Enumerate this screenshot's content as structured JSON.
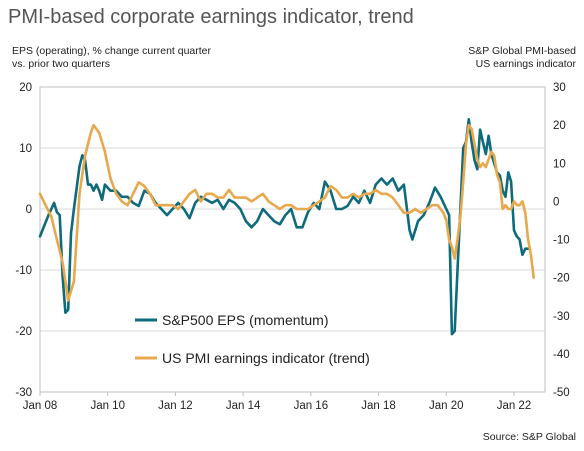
{
  "title": "PMI-based corporate earnings indicator, trend",
  "source": "Source: S&P Global",
  "chart_data": {
    "type": "line",
    "left_axis_label": [
      "EPS (operating), % change current quarter",
      "vs. prior two quarters"
    ],
    "right_axis_label": [
      "S&P Global PMI-based",
      "US earnings indicator"
    ],
    "x_tick_labels": [
      "Jan 08",
      "Jan 10",
      "Jan 12",
      "Jan 14",
      "Jan 16",
      "Jan 18",
      "Jan 20",
      "Jan 22"
    ],
    "x_range": [
      "2008-01",
      "2022-12"
    ],
    "left_ylim": [
      -30,
      20
    ],
    "left_ticks": [
      20,
      10,
      0,
      -10,
      -20,
      -30
    ],
    "right_ylim": [
      -50,
      30
    ],
    "right_ticks": [
      30,
      20,
      10,
      0,
      -10,
      -20,
      -30,
      -40,
      -50
    ],
    "grid": true,
    "legend_placement": "bottom-center",
    "series": [
      {
        "name": "S&P500 EPS (momentum)",
        "axis": "left",
        "color": "#0e6b7c",
        "points": [
          [
            "2008-01",
            -4.5
          ],
          [
            "2008-04",
            -1
          ],
          [
            "2008-06",
            1
          ],
          [
            "2008-07",
            -0.5
          ],
          [
            "2008-08",
            -1
          ],
          [
            "2008-09",
            -11
          ],
          [
            "2008-10",
            -17
          ],
          [
            "2008-11",
            -16.5
          ],
          [
            "2008-12",
            -4
          ],
          [
            "2009-01",
            0
          ],
          [
            "2009-03",
            7
          ],
          [
            "2009-04",
            8.8
          ],
          [
            "2009-05",
            8
          ],
          [
            "2009-06",
            4
          ],
          [
            "2009-07",
            4
          ],
          [
            "2009-08",
            3
          ],
          [
            "2009-09",
            4
          ],
          [
            "2009-10",
            3
          ],
          [
            "2009-11",
            1.5
          ],
          [
            "2009-12",
            4
          ],
          [
            "2010-02",
            3
          ],
          [
            "2010-04",
            3
          ],
          [
            "2010-06",
            2
          ],
          [
            "2010-08",
            2
          ],
          [
            "2010-10",
            1
          ],
          [
            "2010-12",
            0.5
          ],
          [
            "2011-02",
            3
          ],
          [
            "2011-04",
            2.5
          ],
          [
            "2011-06",
            1
          ],
          [
            "2011-08",
            0
          ],
          [
            "2011-10",
            -1
          ],
          [
            "2011-12",
            0
          ],
          [
            "2012-02",
            1
          ],
          [
            "2012-04",
            0
          ],
          [
            "2012-06",
            -1.5
          ],
          [
            "2012-08",
            1
          ],
          [
            "2012-10",
            2
          ],
          [
            "2012-12",
            1.5
          ],
          [
            "2013-02",
            1
          ],
          [
            "2013-04",
            1.5
          ],
          [
            "2013-06",
            0
          ],
          [
            "2013-08",
            1.5
          ],
          [
            "2013-10",
            1
          ],
          [
            "2013-12",
            0
          ],
          [
            "2014-02",
            -2
          ],
          [
            "2014-04",
            -3
          ],
          [
            "2014-06",
            -2
          ],
          [
            "2014-08",
            0
          ],
          [
            "2014-10",
            -1
          ],
          [
            "2014-12",
            -2
          ],
          [
            "2015-02",
            -2.5
          ],
          [
            "2015-04",
            -1
          ],
          [
            "2015-06",
            0
          ],
          [
            "2015-08",
            -3
          ],
          [
            "2015-10",
            -3
          ],
          [
            "2015-12",
            -0.5
          ],
          [
            "2016-02",
            1
          ],
          [
            "2016-04",
            0
          ],
          [
            "2016-06",
            4.5
          ],
          [
            "2016-08",
            3
          ],
          [
            "2016-10",
            0
          ],
          [
            "2016-12",
            0
          ],
          [
            "2017-02",
            0.5
          ],
          [
            "2017-04",
            2
          ],
          [
            "2017-06",
            1
          ],
          [
            "2017-08",
            3
          ],
          [
            "2017-10",
            1
          ],
          [
            "2017-12",
            4
          ],
          [
            "2018-02",
            5
          ],
          [
            "2018-04",
            4
          ],
          [
            "2018-06",
            5
          ],
          [
            "2018-08",
            3
          ],
          [
            "2018-10",
            4
          ],
          [
            "2018-12",
            -3.5
          ],
          [
            "2019-01",
            -5
          ],
          [
            "2019-03",
            -2
          ],
          [
            "2019-05",
            -1
          ],
          [
            "2019-07",
            1
          ],
          [
            "2019-09",
            3.5
          ],
          [
            "2019-11",
            2
          ],
          [
            "2020-01",
            0
          ],
          [
            "2020-02",
            -1
          ],
          [
            "2020-03",
            -20.5
          ],
          [
            "2020-04",
            -20
          ],
          [
            "2020-05",
            -10
          ],
          [
            "2020-06",
            0
          ],
          [
            "2020-07",
            10
          ],
          [
            "2020-08",
            11
          ],
          [
            "2020-09",
            14.7
          ],
          [
            "2020-10",
            11
          ],
          [
            "2020-11",
            8
          ],
          [
            "2020-12",
            6.5
          ],
          [
            "2021-01",
            13
          ],
          [
            "2021-02",
            11
          ],
          [
            "2021-03",
            9
          ],
          [
            "2021-04",
            12
          ],
          [
            "2021-05",
            9
          ],
          [
            "2021-06",
            7.5
          ],
          [
            "2021-07",
            6
          ],
          [
            "2021-08",
            5.5
          ],
          [
            "2021-09",
            3
          ],
          [
            "2021-10",
            2
          ],
          [
            "2021-11",
            6
          ],
          [
            "2021-12",
            4.5
          ],
          [
            "2022-01",
            -3.5
          ],
          [
            "2022-02",
            -4.5
          ],
          [
            "2022-03",
            -5
          ],
          [
            "2022-04",
            -7.5
          ],
          [
            "2022-05",
            -6.5
          ],
          [
            "2022-06",
            -6.5
          ]
        ]
      },
      {
        "name": "US PMI earnings indicator (trend)",
        "axis": "right",
        "color": "#e8a84c",
        "points": [
          [
            "2008-01",
            2
          ],
          [
            "2008-03",
            -1
          ],
          [
            "2008-05",
            -4
          ],
          [
            "2008-07",
            -10
          ],
          [
            "2008-09",
            -16
          ],
          [
            "2008-11",
            -26
          ],
          [
            "2009-01",
            -21
          ],
          [
            "2009-03",
            2
          ],
          [
            "2009-05",
            12
          ],
          [
            "2009-07",
            18
          ],
          [
            "2009-08",
            20
          ],
          [
            "2009-10",
            18
          ],
          [
            "2009-12",
            13
          ],
          [
            "2010-02",
            6
          ],
          [
            "2010-04",
            2
          ],
          [
            "2010-06",
            0
          ],
          [
            "2010-08",
            -1
          ],
          [
            "2010-10",
            2
          ],
          [
            "2010-12",
            5
          ],
          [
            "2011-02",
            4
          ],
          [
            "2011-04",
            2
          ],
          [
            "2011-06",
            -1
          ],
          [
            "2011-08",
            -1
          ],
          [
            "2011-10",
            -1
          ],
          [
            "2011-12",
            -1
          ],
          [
            "2012-02",
            -2
          ],
          [
            "2012-04",
            0
          ],
          [
            "2012-06",
            2
          ],
          [
            "2012-08",
            3
          ],
          [
            "2012-10",
            0
          ],
          [
            "2012-12",
            2
          ],
          [
            "2013-02",
            2
          ],
          [
            "2013-04",
            1
          ],
          [
            "2013-06",
            1
          ],
          [
            "2013-08",
            3
          ],
          [
            "2013-10",
            1
          ],
          [
            "2013-12",
            1
          ],
          [
            "2014-02",
            1
          ],
          [
            "2014-04",
            0
          ],
          [
            "2014-06",
            1
          ],
          [
            "2014-08",
            2
          ],
          [
            "2014-10",
            0
          ],
          [
            "2014-12",
            -1
          ],
          [
            "2015-02",
            -2
          ],
          [
            "2015-04",
            -1
          ],
          [
            "2015-06",
            -1
          ],
          [
            "2015-08",
            -2
          ],
          [
            "2015-10",
            -2
          ],
          [
            "2015-12",
            -2
          ],
          [
            "2016-02",
            -1
          ],
          [
            "2016-04",
            0
          ],
          [
            "2016-06",
            1
          ],
          [
            "2016-08",
            4
          ],
          [
            "2016-10",
            3
          ],
          [
            "2016-12",
            1
          ],
          [
            "2017-02",
            1
          ],
          [
            "2017-04",
            2
          ],
          [
            "2017-06",
            1
          ],
          [
            "2017-08",
            2
          ],
          [
            "2017-10",
            2
          ],
          [
            "2017-12",
            3
          ],
          [
            "2018-02",
            2
          ],
          [
            "2018-04",
            2
          ],
          [
            "2018-06",
            1
          ],
          [
            "2018-08",
            -1
          ],
          [
            "2018-10",
            -3
          ],
          [
            "2018-12",
            -3
          ],
          [
            "2019-02",
            -2
          ],
          [
            "2019-04",
            -3
          ],
          [
            "2019-06",
            -2
          ],
          [
            "2019-08",
            -1
          ],
          [
            "2019-10",
            -1
          ],
          [
            "2019-12",
            -3
          ],
          [
            "2020-01",
            -5
          ],
          [
            "2020-02",
            -10
          ],
          [
            "2020-03",
            -12
          ],
          [
            "2020-04",
            -15
          ],
          [
            "2020-05",
            -10
          ],
          [
            "2020-06",
            -4
          ],
          [
            "2020-07",
            5
          ],
          [
            "2020-08",
            15
          ],
          [
            "2020-09",
            20
          ],
          [
            "2020-10",
            19
          ],
          [
            "2020-11",
            15
          ],
          [
            "2020-12",
            11
          ],
          [
            "2021-01",
            9
          ],
          [
            "2021-02",
            10
          ],
          [
            "2021-03",
            9
          ],
          [
            "2021-04",
            11
          ],
          [
            "2021-05",
            13
          ],
          [
            "2021-06",
            12
          ],
          [
            "2021-07",
            7
          ],
          [
            "2021-08",
            5
          ],
          [
            "2021-09",
            -2
          ],
          [
            "2021-10",
            -1
          ],
          [
            "2021-11",
            -2
          ],
          [
            "2021-12",
            -2
          ],
          [
            "2022-01",
            0
          ],
          [
            "2022-02",
            -1
          ],
          [
            "2022-03",
            -1
          ],
          [
            "2022-04",
            0
          ],
          [
            "2022-05",
            -3
          ],
          [
            "2022-06",
            -10
          ],
          [
            "2022-07",
            -14
          ],
          [
            "2022-08",
            -20
          ]
        ]
      }
    ]
  }
}
